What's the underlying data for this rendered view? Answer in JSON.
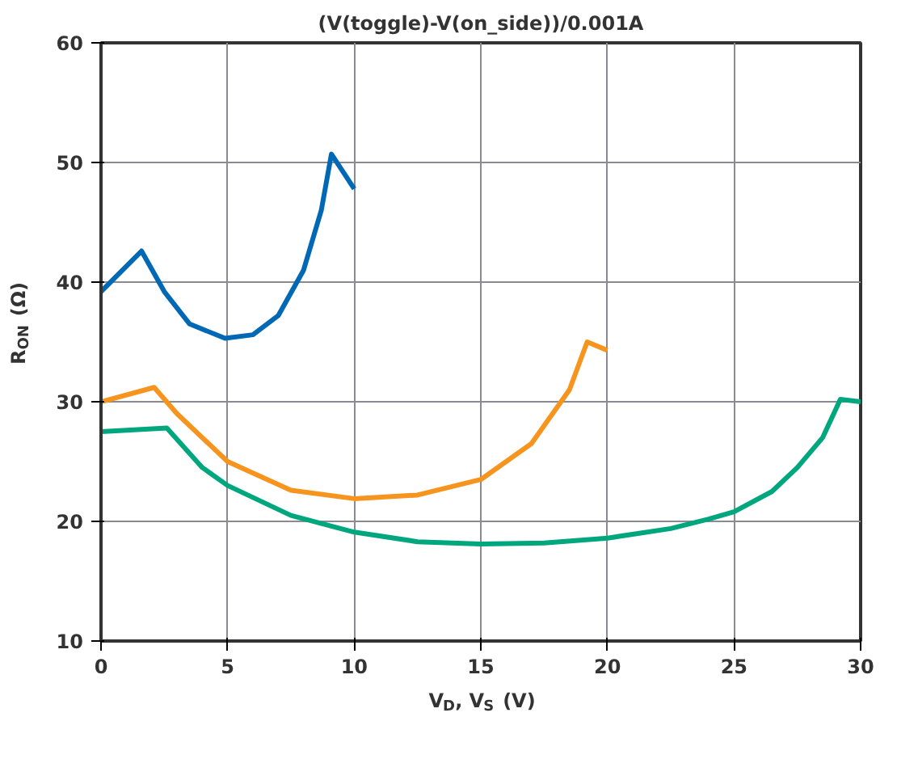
{
  "chart_data": {
    "type": "line",
    "title": "(V(toggle)-V(on_side))/0.001A",
    "xlabel": "V$_{D}$, V$_{S}$ (V)",
    "ylabel": "R$_{ON}$ (Ω)",
    "xlim": [
      0,
      30
    ],
    "ylim": [
      10,
      60
    ],
    "xticks": [
      0,
      5,
      10,
      15,
      20,
      25,
      30
    ],
    "yticks": [
      10,
      20,
      30,
      40,
      50,
      60
    ],
    "grid": true,
    "series": [
      {
        "color": "#0068b5",
        "x": [
          0,
          1.6,
          2.5,
          3.5,
          4.9,
          6,
          7,
          8,
          8.7,
          9.1,
          10
        ],
        "values": [
          39.2,
          42.6,
          39.2,
          36.5,
          35.3,
          35.6,
          37.2,
          41,
          46,
          50.7,
          47.8
        ]
      },
      {
        "color": "#f7941d",
        "x": [
          0,
          2.1,
          3,
          5,
          7.5,
          10,
          12.5,
          15,
          17,
          18.5,
          19.2,
          20
        ],
        "values": [
          30,
          31.2,
          29,
          25,
          22.6,
          21.9,
          22.2,
          23.5,
          26.5,
          31,
          35,
          34.3
        ]
      },
      {
        "color": "#00a77e",
        "x": [
          0,
          2.6,
          4,
          5,
          7.5,
          10,
          12.5,
          15,
          17.5,
          20,
          22.5,
          24,
          25,
          26.5,
          27.5,
          28.5,
          29.2,
          30
        ],
        "values": [
          27.5,
          27.8,
          24.5,
          23,
          20.5,
          19.1,
          18.3,
          18.1,
          18.2,
          18.6,
          19.4,
          20.2,
          20.8,
          22.5,
          24.5,
          27,
          30.2,
          30
        ]
      }
    ]
  }
}
